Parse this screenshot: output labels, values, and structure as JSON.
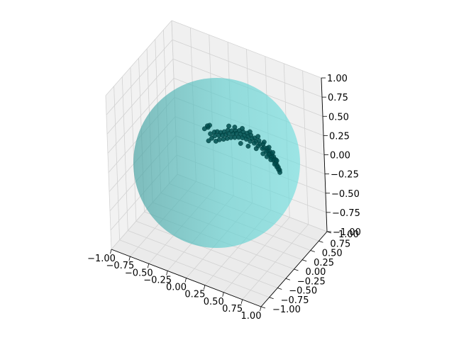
{
  "chart_data": {
    "type": "scatter",
    "projection": "3d",
    "title": "",
    "xlabel": "",
    "ylabel": "",
    "zlabel": "",
    "xlim": [
      -1,
      1
    ],
    "ylim": [
      -1,
      1
    ],
    "zlim": [
      -1,
      1
    ],
    "grid": true,
    "x_ticks": [
      "−1.00",
      "−0.75",
      "−0.50",
      "−0.25",
      "0.00",
      "0.25",
      "0.50",
      "0.75",
      "1.00"
    ],
    "y_ticks": [
      "−1.00",
      "−0.75",
      "−0.50",
      "−0.25",
      "0.00",
      "0.25",
      "0.50",
      "0.75",
      "1.00"
    ],
    "z_ticks": [
      "−1.00",
      "−0.75",
      "−0.50",
      "−0.25",
      "0.00",
      "0.25",
      "0.50",
      "0.75",
      "1.00"
    ],
    "sphere": {
      "center": [
        0,
        0,
        0
      ],
      "radius": 1,
      "color": "#5fcfcf",
      "opacity": 0.65
    },
    "point_color": "#004d4d",
    "points_cluster": "dense band of points near the upper part of the unit sphere surface",
    "points": [
      [
        -0.15,
        -0.55,
        0.45
      ],
      [
        -0.1,
        -0.5,
        0.48
      ],
      [
        -0.05,
        -0.52,
        0.5
      ],
      [
        0.0,
        -0.5,
        0.5
      ],
      [
        0.05,
        -0.48,
        0.52
      ],
      [
        0.1,
        -0.45,
        0.55
      ],
      [
        0.15,
        -0.42,
        0.55
      ],
      [
        0.2,
        -0.38,
        0.56
      ],
      [
        0.25,
        -0.34,
        0.57
      ],
      [
        0.3,
        -0.3,
        0.56
      ],
      [
        0.35,
        -0.26,
        0.55
      ],
      [
        0.4,
        -0.22,
        0.53
      ],
      [
        0.45,
        -0.18,
        0.5
      ],
      [
        0.5,
        -0.12,
        0.47
      ],
      [
        0.55,
        -0.06,
        0.43
      ],
      [
        0.6,
        0.0,
        0.38
      ],
      [
        0.62,
        0.05,
        0.34
      ],
      [
        0.64,
        0.1,
        0.3
      ],
      [
        0.66,
        0.15,
        0.26
      ],
      [
        0.68,
        0.2,
        0.22
      ],
      [
        -0.12,
        -0.58,
        0.4
      ],
      [
        -0.08,
        -0.55,
        0.44
      ],
      [
        -0.02,
        -0.54,
        0.46
      ],
      [
        0.03,
        -0.52,
        0.47
      ],
      [
        0.08,
        -0.5,
        0.49
      ],
      [
        0.12,
        -0.47,
        0.51
      ],
      [
        0.18,
        -0.44,
        0.52
      ],
      [
        0.22,
        -0.4,
        0.53
      ],
      [
        0.27,
        -0.36,
        0.53
      ],
      [
        0.32,
        -0.32,
        0.52
      ],
      [
        0.37,
        -0.28,
        0.51
      ],
      [
        0.42,
        -0.24,
        0.49
      ],
      [
        0.47,
        -0.2,
        0.46
      ],
      [
        0.52,
        -0.15,
        0.43
      ],
      [
        0.57,
        -0.09,
        0.39
      ],
      [
        0.61,
        -0.03,
        0.35
      ],
      [
        0.63,
        0.02,
        0.31
      ],
      [
        0.65,
        0.08,
        0.27
      ],
      [
        0.67,
        0.13,
        0.23
      ],
      [
        0.69,
        0.18,
        0.19
      ],
      [
        -0.05,
        -0.6,
        0.38
      ],
      [
        0.0,
        -0.58,
        0.41
      ],
      [
        0.06,
        -0.56,
        0.43
      ],
      [
        0.11,
        -0.53,
        0.45
      ],
      [
        0.16,
        -0.5,
        0.47
      ],
      [
        0.21,
        -0.46,
        0.48
      ],
      [
        0.26,
        -0.42,
        0.49
      ],
      [
        0.31,
        -0.38,
        0.49
      ],
      [
        0.36,
        -0.34,
        0.48
      ],
      [
        0.41,
        -0.3,
        0.46
      ],
      [
        0.46,
        -0.25,
        0.44
      ],
      [
        0.51,
        -0.2,
        0.41
      ],
      [
        0.56,
        -0.14,
        0.38
      ],
      [
        0.6,
        -0.08,
        0.34
      ],
      [
        0.63,
        -0.02,
        0.3
      ],
      [
        0.65,
        0.04,
        0.26
      ],
      [
        0.67,
        0.1,
        0.22
      ],
      [
        0.69,
        0.15,
        0.18
      ],
      [
        0.7,
        0.2,
        0.15
      ],
      [
        0.71,
        0.24,
        0.12
      ],
      [
        -0.2,
        -0.5,
        0.52
      ],
      [
        -0.18,
        -0.48,
        0.55
      ],
      [
        -0.22,
        -0.46,
        0.53
      ],
      [
        -0.25,
        -0.52,
        0.49
      ],
      [
        -0.16,
        -0.62,
        0.36
      ],
      [
        0.1,
        -0.4,
        0.6
      ],
      [
        0.18,
        -0.35,
        0.6
      ],
      [
        0.28,
        -0.28,
        0.6
      ],
      [
        0.38,
        -0.2,
        0.57
      ],
      [
        0.48,
        -0.1,
        0.52
      ],
      [
        0.55,
        0.0,
        0.45
      ],
      [
        0.6,
        0.1,
        0.38
      ],
      [
        0.64,
        0.18,
        0.31
      ],
      [
        0.68,
        0.26,
        0.2
      ],
      [
        0.72,
        0.28,
        0.08
      ],
      [
        0.3,
        -0.45,
        0.42
      ],
      [
        0.4,
        -0.38,
        0.4
      ],
      [
        0.5,
        -0.28,
        0.38
      ],
      [
        0.58,
        -0.18,
        0.32
      ],
      [
        0.62,
        -0.1,
        0.28
      ],
      [
        0.66,
        -0.02,
        0.24
      ],
      [
        0.7,
        0.06,
        0.18
      ],
      [
        0.72,
        0.12,
        0.14
      ],
      [
        0.73,
        0.18,
        0.1
      ],
      [
        0.74,
        0.22,
        0.06
      ]
    ]
  }
}
